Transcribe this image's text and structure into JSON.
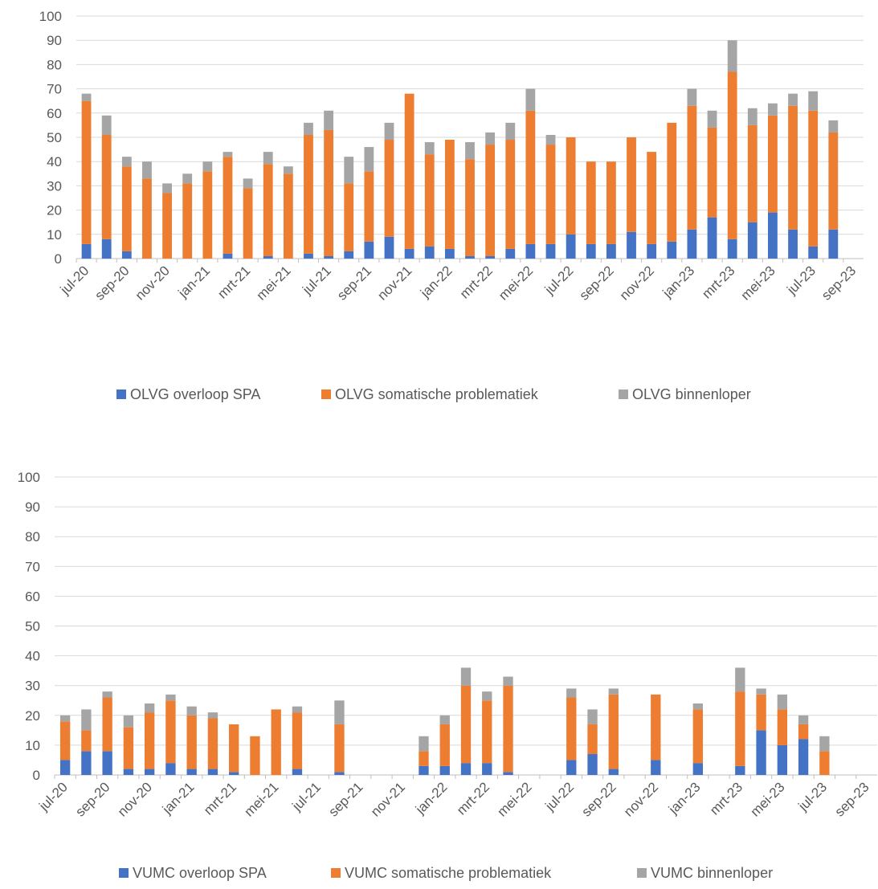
{
  "chart_data": [
    {
      "type": "stacked-bar",
      "categories": [
        "jul-20",
        null,
        "sep-20",
        null,
        "nov-20",
        null,
        "jan-21",
        null,
        "mrt-21",
        null,
        "mei-21",
        null,
        "jul-21",
        null,
        "sep-21",
        null,
        "nov-21",
        null,
        "jan-22",
        null,
        "mrt-22",
        null,
        "mei-22",
        null,
        "jul-22",
        null,
        "sep-22",
        null,
        "nov-22",
        null,
        "jan-23",
        null,
        "mrt-23",
        null,
        "mei-23",
        null,
        "jul-23",
        null,
        "sep-23"
      ],
      "series": [
        {
          "name": "OLVG overloop SPA",
          "color": "#4472c4",
          "values": [
            6,
            8,
            3,
            0,
            0,
            0,
            0,
            2,
            0,
            1,
            0,
            2,
            1,
            3,
            7,
            9,
            4,
            5,
            4,
            1,
            1,
            4,
            6,
            6,
            10,
            6,
            6,
            11,
            6,
            7,
            12,
            17,
            8,
            15,
            19,
            12,
            5,
            12,
            null
          ]
        },
        {
          "name": "OLVG somatische problematiek",
          "color": "#ed7d31",
          "values": [
            59,
            43,
            35,
            33,
            27,
            31,
            36,
            40,
            29,
            38,
            35,
            49,
            52,
            28,
            29,
            40,
            64,
            38,
            45,
            40,
            46,
            45,
            55,
            41,
            40,
            34,
            34,
            39,
            38,
            49,
            51,
            37,
            69,
            40,
            40,
            51,
            56,
            40,
            null
          ]
        },
        {
          "name": "OLVG binnenloper",
          "color": "#a5a5a5",
          "values": [
            3,
            8,
            4,
            7,
            4,
            4,
            4,
            2,
            4,
            5,
            3,
            5,
            8,
            11,
            10,
            7,
            0,
            5,
            0,
            7,
            5,
            7,
            9,
            4,
            0,
            0,
            0,
            0,
            0,
            0,
            7,
            7,
            13,
            7,
            5,
            5,
            8,
            5,
            null
          ]
        }
      ],
      "ylim": [
        0,
        100
      ],
      "yticks": [
        0,
        10,
        20,
        30,
        40,
        50,
        60,
        70,
        80,
        90,
        100
      ],
      "grid": true,
      "legend": "bottom"
    },
    {
      "type": "stacked-bar",
      "categories": [
        "jul-20",
        null,
        "sep-20",
        null,
        "nov-20",
        null,
        "jan-21",
        null,
        "mrt-21",
        null,
        "mei-21",
        null,
        "jul-21",
        null,
        "sep-21",
        null,
        "nov-21",
        null,
        "jan-22",
        null,
        "mrt-22",
        null,
        "mei-22",
        null,
        "jul-22",
        null,
        "sep-22",
        null,
        "nov-22",
        null,
        "jan-23",
        null,
        "mrt-23",
        null,
        "mei-23",
        null,
        "jul-23",
        null,
        "sep-23"
      ],
      "series": [
        {
          "name": "VUMC overloop SPA",
          "color": "#4472c4",
          "values": [
            5,
            8,
            8,
            2,
            2,
            4,
            2,
            2,
            1,
            0,
            0,
            2,
            null,
            1,
            null,
            null,
            null,
            3,
            3,
            4,
            4,
            1,
            null,
            null,
            5,
            7,
            2,
            null,
            5,
            null,
            4,
            null,
            3,
            15,
            10,
            12,
            0,
            null,
            null
          ]
        },
        {
          "name": "VUMC somatische problematiek",
          "color": "#ed7d31",
          "values": [
            13,
            7,
            18,
            14,
            19,
            21,
            18,
            17,
            16,
            13,
            22,
            19,
            null,
            16,
            null,
            null,
            null,
            5,
            14,
            26,
            21,
            29,
            null,
            null,
            21,
            10,
            25,
            null,
            22,
            null,
            18,
            null,
            25,
            12,
            12,
            5,
            8,
            null,
            null
          ]
        },
        {
          "name": "VUMC binnenloper",
          "color": "#a5a5a5",
          "values": [
            2,
            7,
            2,
            4,
            3,
            2,
            3,
            2,
            0,
            0,
            0,
            2,
            null,
            8,
            null,
            null,
            null,
            5,
            3,
            6,
            3,
            3,
            null,
            null,
            3,
            5,
            2,
            null,
            0,
            null,
            2,
            null,
            8,
            2,
            5,
            3,
            5,
            null,
            null
          ]
        }
      ],
      "ylim": [
        0,
        100
      ],
      "yticks": [
        0,
        10,
        20,
        30,
        40,
        50,
        60,
        70,
        80,
        90,
        100
      ],
      "grid": true,
      "legend": "bottom"
    }
  ]
}
